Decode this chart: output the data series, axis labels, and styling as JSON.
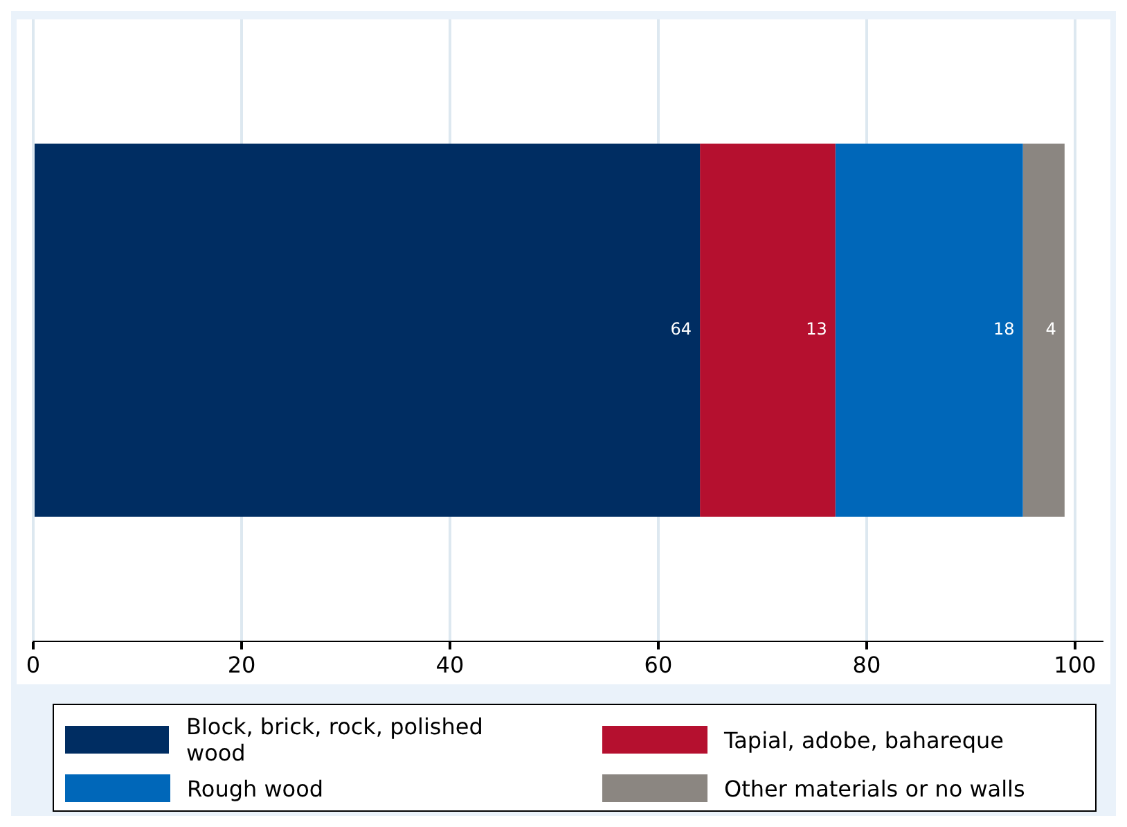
{
  "chart_data": {
    "type": "bar",
    "orientation": "horizontal",
    "stacked": true,
    "categories": [
      null
    ],
    "series": [
      {
        "name": "Block, brick, rock, polished wood",
        "color": "#002d62",
        "values": [
          64
        ]
      },
      {
        "name": "Tapial, adobe, bahareque",
        "color": "#b5102f",
        "values": [
          13
        ]
      },
      {
        "name": "Rough wood",
        "color": "#0067b9",
        "values": [
          18
        ]
      },
      {
        "name": "Other materials or no walls",
        "color": "#8b8681",
        "values": [
          4
        ]
      }
    ],
    "xlim": [
      0,
      102.6
    ],
    "xticks": [
      0,
      20,
      40,
      60,
      80,
      100
    ],
    "grid": "x",
    "legend": "bottom",
    "data_labels": true
  }
}
